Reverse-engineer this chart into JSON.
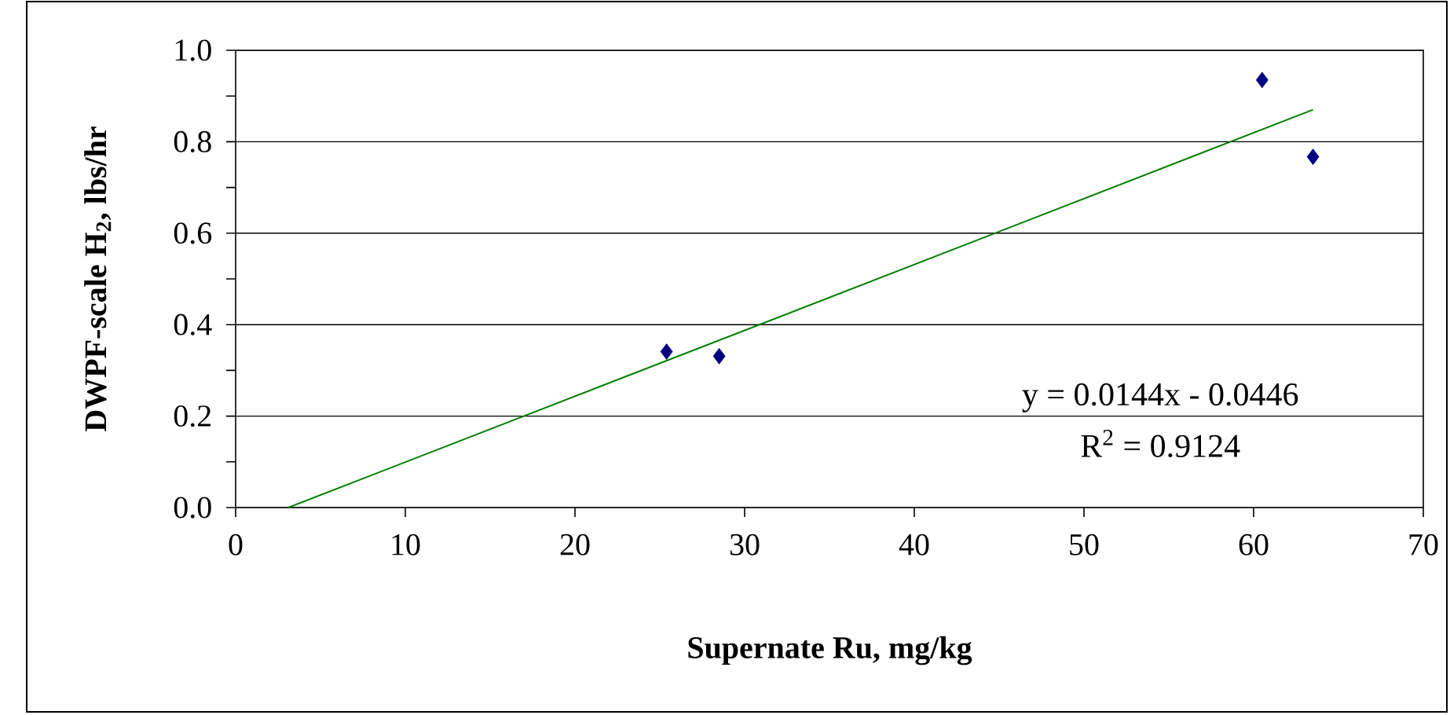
{
  "chart_data": {
    "type": "scatter",
    "xlabel": "Supernate Ru, mg/kg",
    "ylabel": "DWPF-scale H$_{2}$, lbs/hr",
    "x": [
      25.4,
      28.5,
      60.5,
      63.5
    ],
    "series": [
      {
        "color": "#000080",
        "values": [
          0.341,
          0.331,
          0.935,
          0.767
        ]
      },
      {
        "type": "line",
        "color": "#008000",
        "marker": "none",
        "x": [
          3.1,
          63.5
        ],
        "values": [
          0.0,
          0.87
        ]
      }
    ],
    "xlim": [
      0,
      70
    ],
    "xticks": [
      0,
      10,
      20,
      30,
      40,
      50,
      60,
      70
    ],
    "ylim": [
      0,
      1
    ],
    "yticks": [
      {
        "value": 0,
        "label": "0.0"
      },
      {
        "value": 0.1,
        "label": null
      },
      {
        "value": 0.2,
        "label": "0.2"
      },
      {
        "value": 0.3,
        "label": null
      },
      {
        "value": 0.4,
        "label": "0.4"
      },
      {
        "value": 0.5,
        "label": null
      },
      {
        "value": 0.6,
        "label": "0.6"
      },
      {
        "value": 0.7,
        "label": null
      },
      {
        "value": 0.8,
        "label": "0.8"
      },
      {
        "value": 0.9,
        "label": null
      },
      {
        "value": 1,
        "label": "1.0"
      }
    ],
    "grid": "y",
    "marker": "diamond",
    "annotations": [
      "y = 0.0144x - 0.0446",
      "R$^{2}$ = 0.9124"
    ]
  }
}
